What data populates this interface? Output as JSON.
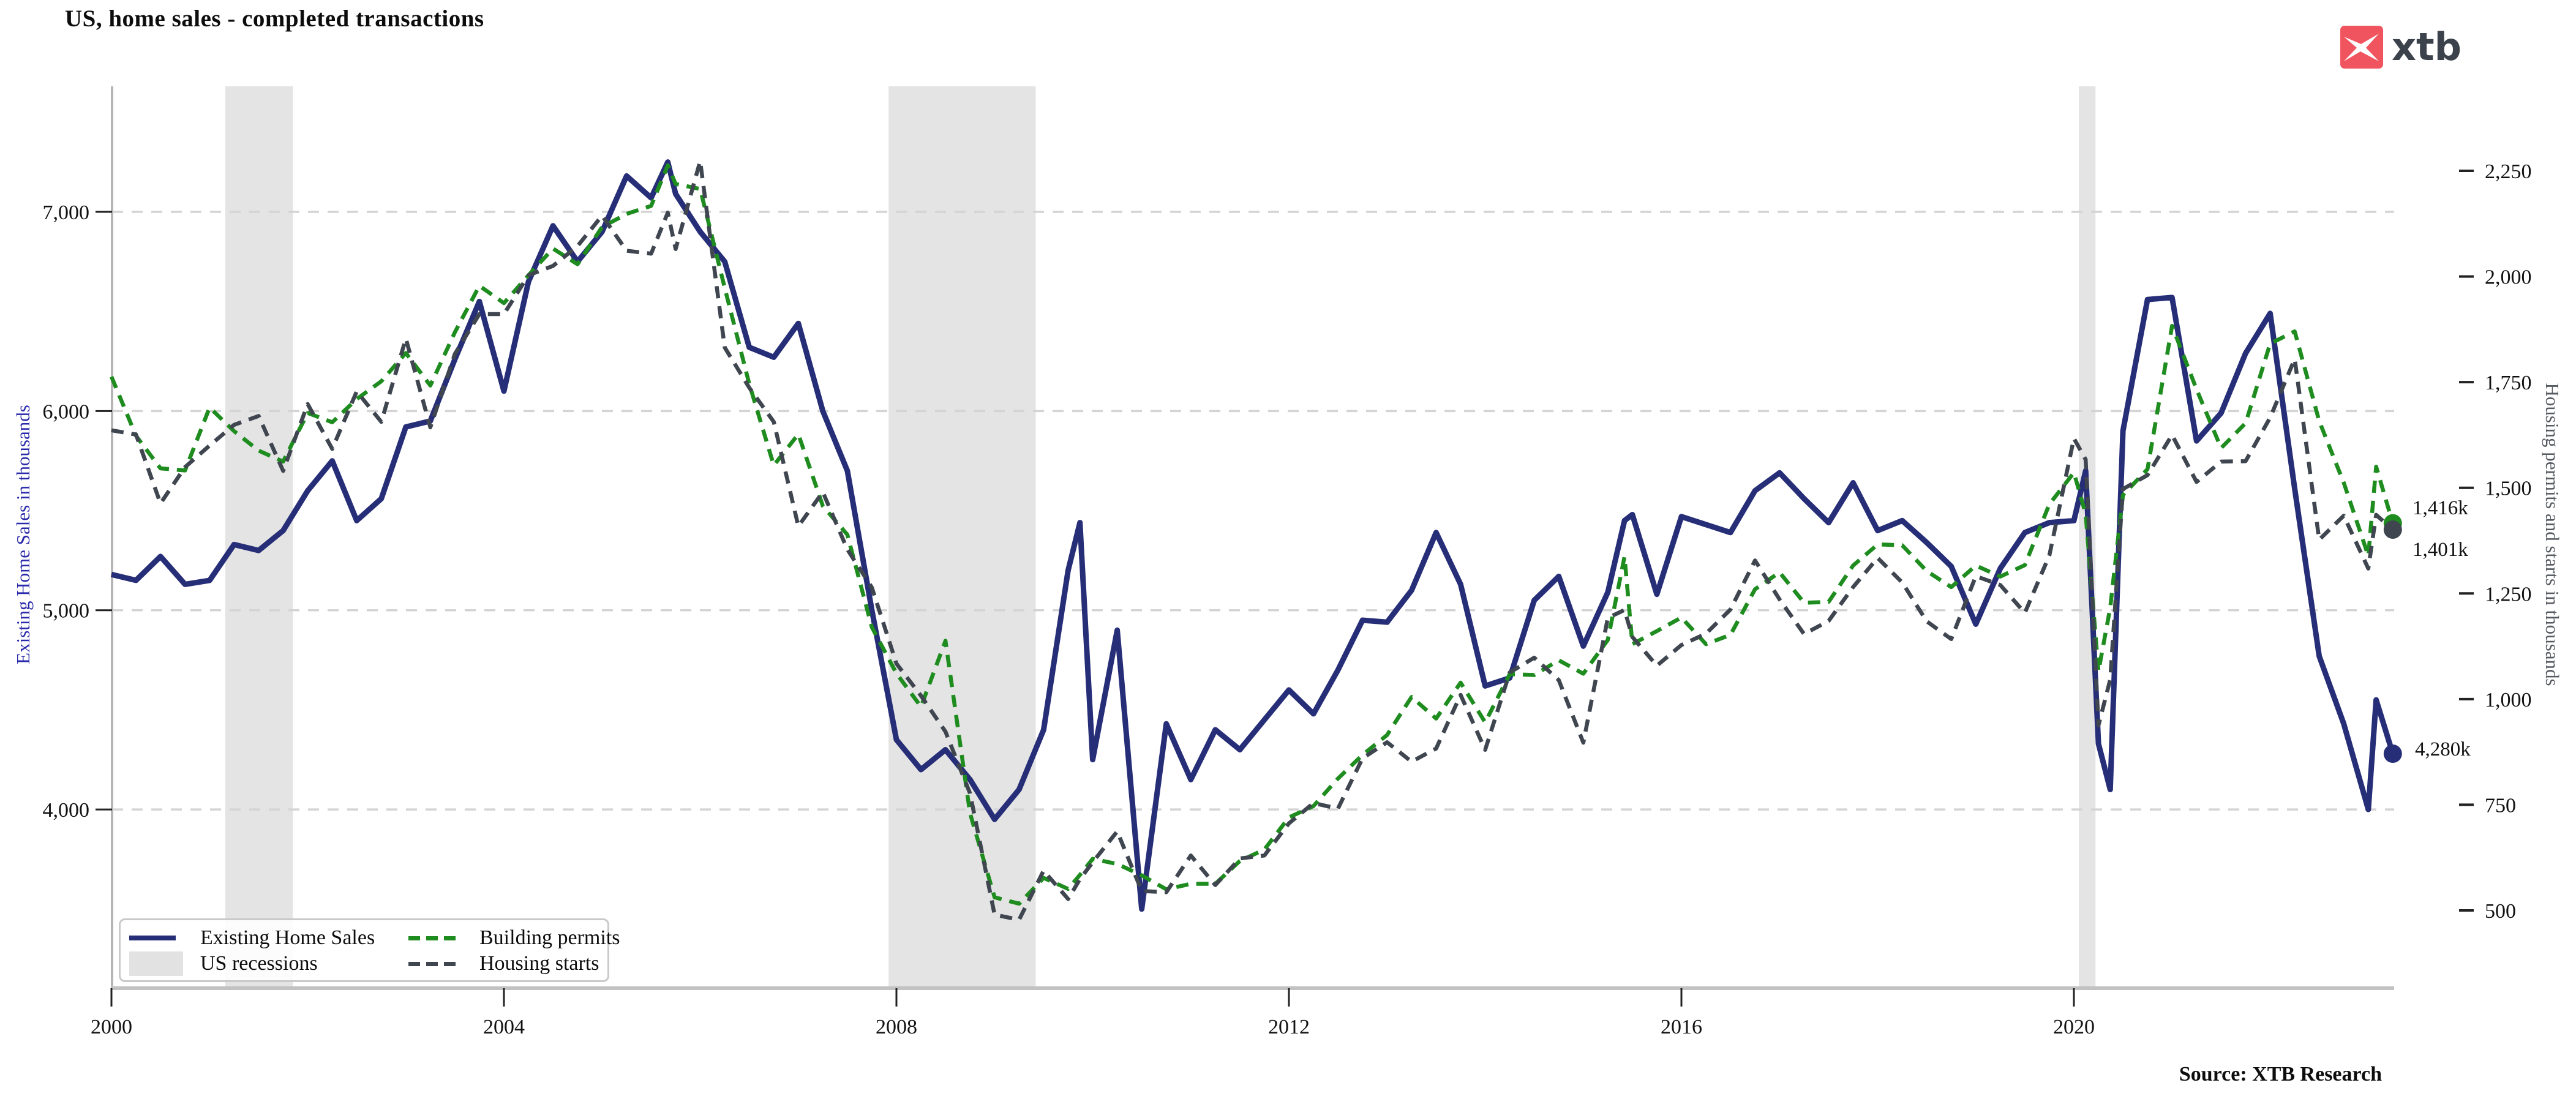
{
  "header": {
    "title": "US, home sales - completed transactions",
    "logo_text": "xtb"
  },
  "footer": {
    "source": "Source: XTB Research"
  },
  "axes": {
    "left": {
      "label": "Existing Home Sales in thousands"
    },
    "right": {
      "label": "Housing permits and starts in thousands"
    }
  },
  "legend": {
    "items": [
      {
        "label": "Existing Home Sales",
        "swatch": "navy-solid-line"
      },
      {
        "label": "Building permits",
        "swatch": "green-dashed-line"
      },
      {
        "label": "US recessions",
        "swatch": "gray-patch"
      },
      {
        "label": "Housing starts",
        "swatch": "darkgray-dashed-line"
      }
    ]
  },
  "annotations": {
    "building_permits_last": "1,416k",
    "housing_starts_last": "1,401k",
    "existing_home_sales_last": "4,280k"
  },
  "colors": {
    "existing_home_sales": "#272e78",
    "building_permits": "#1e8c1e",
    "housing_starts": "#3f4650",
    "recession_band": "#e4e4e4",
    "gridline": "#d4d4d4",
    "left_axis_label": "#2929ab",
    "right_axis_label": "#565a61",
    "logo_red": "#f0545f"
  },
  "chart_data": {
    "type": "line",
    "title": "US, home sales - completed transactions",
    "xlabel": "",
    "ylabel_left": "Existing Home Sales in thousands",
    "ylabel_right": "Housing permits and starts in thousands",
    "x_ticks": [
      2000,
      2004,
      2008,
      2012,
      2016,
      2020
    ],
    "y_left_ticks": [
      4000,
      5000,
      6000,
      7000
    ],
    "y_right_ticks": [
      500,
      750,
      1000,
      1250,
      1500,
      1750,
      2000,
      2250
    ],
    "y_left_range": [
      3330,
      7630
    ],
    "y_right_range": [
      323,
      2448
    ],
    "x_range": [
      2000.0,
      2023.35
    ],
    "grid": "horizontal-dashed",
    "legend_position": "lower-left",
    "recessions": [
      {
        "start": 2001.16,
        "end": 2001.85
      },
      {
        "start": 2007.92,
        "end": 2009.42
      },
      {
        "start": 2020.05,
        "end": 2020.22
      }
    ],
    "x": [
      2000,
      2000.25,
      2000.5,
      2000.75,
      2001,
      2001.25,
      2001.5,
      2001.75,
      2002,
      2002.25,
      2002.5,
      2002.75,
      2003,
      2003.25,
      2003.5,
      2003.75,
      2004,
      2004.25,
      2004.5,
      2004.75,
      2005,
      2005.25,
      2005.5,
      2005.67,
      2005.75,
      2006,
      2006.25,
      2006.5,
      2006.75,
      2007,
      2007.25,
      2007.5,
      2007.75,
      2008,
      2008.25,
      2008.5,
      2008.75,
      2009,
      2009.25,
      2009.5,
      2009.75,
      2009.87,
      2010,
      2010.25,
      2010.5,
      2010.75,
      2011,
      2011.25,
      2011.5,
      2011.75,
      2012,
      2012.25,
      2012.5,
      2012.75,
      2013,
      2013.25,
      2013.5,
      2013.75,
      2014,
      2014.25,
      2014.5,
      2014.75,
      2015,
      2015.25,
      2015.42,
      2015.5,
      2015.75,
      2016,
      2016.25,
      2016.5,
      2016.75,
      2017,
      2017.25,
      2017.5,
      2017.75,
      2018,
      2018.25,
      2018.5,
      2018.75,
      2019,
      2019.25,
      2019.5,
      2019.75,
      2020,
      2020.12,
      2020.25,
      2020.37,
      2020.5,
      2020.75,
      2021,
      2021.25,
      2021.5,
      2021.75,
      2022,
      2022.25,
      2022.5,
      2022.75,
      2023,
      2023.08,
      2023.25
    ],
    "series": [
      {
        "name": "Existing Home Sales",
        "axis": "left",
        "style": "solid",
        "color": "#272e78",
        "end_label": "4,280k",
        "values": [
          5180,
          5150,
          5270,
          5130,
          5150,
          5330,
          5300,
          5400,
          5600,
          5750,
          5450,
          5560,
          5920,
          5950,
          6260,
          6550,
          6100,
          6650,
          6930,
          6750,
          6900,
          7180,
          7070,
          7250,
          7090,
          6900,
          6750,
          6320,
          6270,
          6440,
          6000,
          5700,
          5000,
          4350,
          4200,
          4300,
          4150,
          3950,
          4100,
          4400,
          5200,
          5440,
          4250,
          4900,
          3500,
          4430,
          4150,
          4400,
          4300,
          4450,
          4600,
          4480,
          4700,
          4950,
          4940,
          5100,
          5390,
          5130,
          4620,
          4660,
          5050,
          5170,
          4820,
          5090,
          5450,
          5480,
          5080,
          5470,
          5430,
          5390,
          5600,
          5690,
          5560,
          5440,
          5640,
          5400,
          5450,
          5340,
          5220,
          4930,
          5210,
          5390,
          5440,
          5450,
          5700,
          4330,
          4100,
          5900,
          6560,
          6570,
          5850,
          5990,
          6290,
          6490,
          5610,
          4770,
          4430,
          4000,
          4550,
          4280
        ]
      },
      {
        "name": "Building permits",
        "axis": "right",
        "style": "dashed",
        "color": "#1e8c1e",
        "end_label": "1,416k",
        "values": [
          1763,
          1623,
          1546,
          1541,
          1690,
          1634,
          1588,
          1562,
          1677,
          1655,
          1710,
          1752,
          1819,
          1742,
          1868,
          1978,
          1937,
          2003,
          2066,
          2029,
          2117,
          2148,
          2167,
          2263,
          2219,
          2207,
          1973,
          1746,
          1553,
          1627,
          1457,
          1389,
          1170,
          1061,
          982,
          1138,
          730,
          531,
          516,
          577,
          551,
          584,
          622,
          610,
          583,
          550,
          563,
          563,
          617,
          644,
          720,
          747,
          812,
          868,
          915,
          1005,
          954,
          1039,
          945,
          1059,
          1057,
          1092,
          1060,
          1140,
          1337,
          1130,
          1161,
          1193,
          1130,
          1152,
          1260,
          1300,
          1228,
          1230,
          1316,
          1366,
          1364,
          1303,
          1265,
          1316,
          1290,
          1317,
          1461,
          1536,
          1438,
          1066,
          1216,
          1483,
          1544,
          1883,
          1733,
          1594,
          1653,
          1841,
          1870,
          1658,
          1512,
          1339,
          1550,
          1416
        ]
      },
      {
        "name": "Housing starts",
        "axis": "right",
        "style": "dashed",
        "color": "#3f4650",
        "end_label": "1,401k",
        "values": [
          1636,
          1626,
          1463,
          1549,
          1600,
          1649,
          1670,
          1540,
          1698,
          1592,
          1728,
          1656,
          1853,
          1643,
          1817,
          1911,
          1911,
          2003,
          2025,
          2072,
          2144,
          2061,
          2054,
          2151,
          2065,
          2273,
          1832,
          1737,
          1656,
          1409,
          1490,
          1354,
          1264,
          1084,
          1008,
          923,
          777,
          490,
          478,
          594,
          527,
          574,
          614,
          687,
          546,
          543,
          630,
          560,
          623,
          630,
          706,
          754,
          741,
          860,
          898,
          852,
          883,
          1010,
          880,
          1063,
          1098,
          1045,
          897,
          1192,
          1211,
          1147,
          1079,
          1128,
          1155,
          1212,
          1328,
          1236,
          1154,
          1185,
          1265,
          1334,
          1276,
          1184,
          1142,
          1291,
          1270,
          1204,
          1340,
          1617,
          1567,
          938,
          1046,
          1497,
          1530,
          1625,
          1514,
          1562,
          1563,
          1666,
          1805,
          1377,
          1434,
          1309,
          1436,
          1401
        ]
      }
    ]
  }
}
